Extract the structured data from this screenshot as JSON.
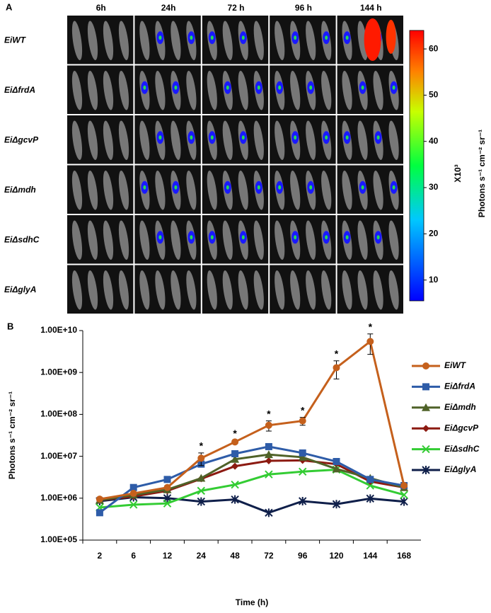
{
  "panel_a": {
    "label": "A",
    "columns": [
      "6h",
      "24h",
      "72 h",
      "96 h",
      "144 h"
    ],
    "rows": [
      "EiWT",
      "EiΔfrdA",
      "EiΔgcvP",
      "EiΔmdh",
      "EiΔsdhC",
      "EiΔglyA"
    ],
    "colorbar": {
      "lim": [
        5.5,
        64
      ],
      "ticks": [
        10,
        20,
        30,
        40,
        50,
        60
      ],
      "scale_label": "X10³",
      "label": "Photons s⁻¹ cm⁻² sr⁻¹"
    }
  },
  "chart_data": {
    "type": "line",
    "panel_label": "B",
    "categories": [
      "2",
      "6",
      "12",
      "24",
      "48",
      "72",
      "96",
      "120",
      "144",
      "168"
    ],
    "series": [
      {
        "name": "EiWT",
        "color": "#c5601c",
        "marker": "circle",
        "values": [
          950000,
          1300000,
          1800000,
          9000000,
          22000000,
          55000000,
          70000000,
          1300000000,
          5500000000,
          2000000
        ],
        "errors": [
          null,
          null,
          null,
          3000000,
          2000000,
          15000000,
          15000000,
          600000000,
          2800000000,
          null
        ]
      },
      {
        "name": "EiΔfrdA",
        "color": "#2e5ca8",
        "marker": "square",
        "values": [
          450000,
          1800000,
          2800000,
          6500000,
          11500000,
          17000000,
          12000000,
          7500000,
          2800000,
          2000000
        ]
      },
      {
        "name": "EiΔmdh",
        "color": "#4f6228",
        "marker": "triangle",
        "values": [
          900000,
          1200000,
          1600000,
          3000000,
          8500000,
          11000000,
          9500000,
          5000000,
          3000000,
          1800000
        ]
      },
      {
        "name": "EiΔgcvP",
        "color": "#8c1a11",
        "marker": "diamond",
        "values": [
          900000,
          1100000,
          1500000,
          2900000,
          5800000,
          7800000,
          8000000,
          6500000,
          2500000,
          1800000
        ]
      },
      {
        "name": "EiΔsdhC",
        "color": "#33cc33",
        "marker": "x",
        "values": [
          600000,
          700000,
          750000,
          1500000,
          2100000,
          3700000,
          4300000,
          4800000,
          2000000,
          1200000
        ]
      },
      {
        "name": "EiΔglyA",
        "color": "#0f1f4a",
        "marker": "star",
        "values": [
          850000,
          1050000,
          1000000,
          830000,
          930000,
          450000,
          850000,
          720000,
          980000,
          830000
        ]
      }
    ],
    "xlabel": "Time (h)",
    "ylabel": "Photons s⁻¹ cm⁻² sr⁻¹",
    "log_y": true,
    "ylim": [
      100000,
      10000000000
    ],
    "yticks": [
      {
        "value": 100000,
        "label": "1.00E+05"
      },
      {
        "value": 1000000,
        "label": "1.00E+06"
      },
      {
        "value": 10000000,
        "label": "1.00E+07"
      },
      {
        "value": 100000000,
        "label": "1.00E+08"
      },
      {
        "value": 1000000000,
        "label": "1.00E+09"
      },
      {
        "value": 10000000000,
        "label": "1.00E+10"
      }
    ],
    "annotations": [
      {
        "category": "24",
        "text": "*"
      },
      {
        "category": "48",
        "text": "*"
      },
      {
        "category": "72",
        "text": "*"
      },
      {
        "category": "96",
        "text": "*"
      },
      {
        "category": "120",
        "text": "*"
      },
      {
        "category": "144",
        "text": "*"
      }
    ]
  }
}
